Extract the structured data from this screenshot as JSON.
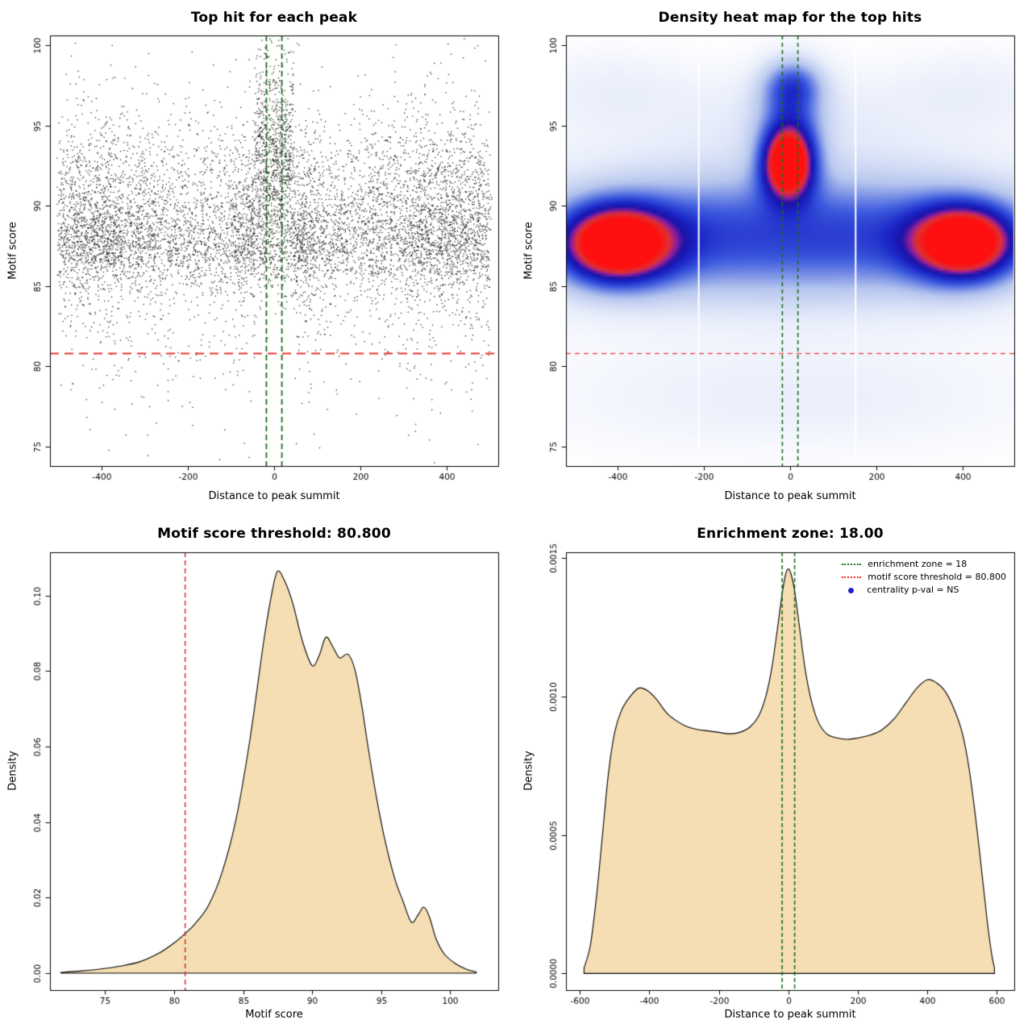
{
  "page": {
    "background_color": "#ffffff"
  },
  "chart_data": [
    {
      "type": "scatter",
      "title": "Top hit for each peak",
      "xlabel": "Distance to peak summit",
      "ylabel": "Motif score",
      "xlim": [
        -520,
        520
      ],
      "ylim": [
        73.8,
        100.6
      ],
      "xticks": [
        -400,
        -200,
        0,
        200,
        400
      ],
      "xticklabels": [
        "-400",
        "-200",
        "0",
        "200",
        "400"
      ],
      "yticks": [
        75,
        80,
        85,
        90,
        95,
        100
      ],
      "yticklabels": [
        "75",
        "80",
        "85",
        "90",
        "95",
        "100"
      ],
      "point_color": "#000000",
      "threshold_line": {
        "y": 80.8,
        "color": "#ee3030"
      },
      "zone_lines": {
        "x": [
          -18,
          18
        ],
        "color": "#1c6b1c"
      },
      "scatter_gen": {
        "seed": 1337,
        "n": 9000,
        "x_clip": [
          -505,
          505
        ],
        "y_clip": [
          73.9,
          100.45
        ],
        "center_half_width": 45,
        "x_mix": [
          {
            "w": 0.6,
            "dist": "uniform",
            "a": -500,
            "b": 500
          },
          {
            "w": 0.16,
            "dist": "normal",
            "mean": 5,
            "sd": 60
          },
          {
            "w": 0.12,
            "dist": "normal",
            "mean": -400,
            "sd": 85
          },
          {
            "w": 0.12,
            "dist": "normal",
            "mean": 400,
            "sd": 85
          }
        ],
        "y_mix": [
          {
            "w": 0.42,
            "dist": "normal",
            "mean": 88.2,
            "sd": 2.3
          },
          {
            "w": 0.22,
            "dist": "normal",
            "mean": 87.6,
            "sd": 1.2
          },
          {
            "w": 0.19,
            "dist": "normal",
            "mean": 91.8,
            "sd": 2.1
          },
          {
            "w": 0.13,
            "dist": "normal",
            "mean": 89.0,
            "sd": 5.5
          },
          {
            "w": 0.04,
            "dist": "normal",
            "mean": 83.0,
            "sd": 3.5
          }
        ],
        "y_mix_center": [
          {
            "w": 0.34,
            "dist": "normal",
            "mean": 92.6,
            "sd": 1.9
          },
          {
            "w": 0.27,
            "dist": "normal",
            "mean": 89.3,
            "sd": 2.6
          },
          {
            "w": 0.24,
            "dist": "normal",
            "mean": 95.8,
            "sd": 2.4
          },
          {
            "w": 0.15,
            "dist": "normal",
            "mean": 87.5,
            "sd": 1.5
          }
        ]
      }
    },
    {
      "type": "heatmap",
      "title": "Density heat map for the top hits",
      "xlabel": "Distance to peak summit",
      "ylabel": "Motif score",
      "xlim": [
        -520,
        520
      ],
      "ylim": [
        73.8,
        100.6
      ],
      "xticks": [
        -400,
        -200,
        0,
        200,
        400
      ],
      "xticklabels": [
        "-400",
        "-200",
        "0",
        "200",
        "400"
      ],
      "yticks": [
        75,
        80,
        85,
        90,
        95,
        100
      ],
      "yticklabels": [
        "75",
        "80",
        "85",
        "90",
        "95",
        "100"
      ],
      "colormap": [
        [
          0.0,
          "#ffffff"
        ],
        [
          0.12,
          "#e9eefb"
        ],
        [
          0.3,
          "#b6c6ee"
        ],
        [
          0.5,
          "#3c5ade"
        ],
        [
          0.62,
          "#1c28c8"
        ],
        [
          0.72,
          "#1a12a8"
        ],
        [
          0.8,
          "#931f9e"
        ],
        [
          0.88,
          "#e03232"
        ],
        [
          1.0,
          "#ff0f0f"
        ]
      ],
      "blobs": [
        {
          "x": -405,
          "y": 87.6,
          "sx": 90,
          "sy": 1.7,
          "w": 1.0
        },
        {
          "x": 405,
          "y": 87.7,
          "sx": 85,
          "sy": 1.65,
          "w": 0.97
        },
        {
          "x": -5,
          "y": 92.6,
          "sx": 42,
          "sy": 1.5,
          "w": 1.0
        },
        {
          "x": 0,
          "y": 88.2,
          "sx": 470,
          "sy": 3.1,
          "w": 0.5
        },
        {
          "x": -230,
          "y": 88.0,
          "sx": 150,
          "sy": 2.3,
          "w": 0.08
        },
        {
          "x": 190,
          "y": 88.0,
          "sx": 150,
          "sy": 2.3,
          "w": 0.08
        },
        {
          "x": 5,
          "y": 97.6,
          "sx": 52,
          "sy": 1.25,
          "w": 0.45
        },
        {
          "x": 0,
          "y": 94.8,
          "sx": 55,
          "sy": 1.6,
          "w": 0.3
        },
        {
          "x": 0,
          "y": 95.9,
          "sx": 380,
          "sy": 2.0,
          "w": 0.1
        },
        {
          "x": 0,
          "y": 78.0,
          "sx": 400,
          "sy": 2.3,
          "w": 0.11
        },
        {
          "x": -430,
          "y": 97.6,
          "sx": 120,
          "sy": 1.6,
          "w": 0.07
        },
        {
          "x": 430,
          "y": 97.6,
          "sx": 120,
          "sy": 1.6,
          "w": 0.07
        }
      ],
      "white_lines_x": [
        -212,
        152
      ],
      "threshold_line": {
        "y": 80.8,
        "color": "#f25050"
      },
      "zone_lines": {
        "x": [
          -18,
          18
        ],
        "color": "#1c6b1c"
      }
    },
    {
      "type": "density",
      "title": "Motif score threshold: 80.800",
      "xlabel": "Motif score",
      "ylabel": "Density",
      "xlim": [
        71,
        103.5
      ],
      "ylim": [
        -0.0045,
        0.1115
      ],
      "xticks": [
        75,
        80,
        85,
        90,
        95,
        100
      ],
      "xticklabels": [
        "75",
        "80",
        "85",
        "90",
        "95",
        "100"
      ],
      "yticks": [
        0,
        0.02,
        0.04,
        0.06,
        0.08,
        0.1
      ],
      "yticklabels": [
        "0.00",
        "0.02",
        "0.04",
        "0.06",
        "0.08",
        "0.10"
      ],
      "fill_color": "#f5deb3",
      "line_color": "#000000",
      "threshold_vline": {
        "x": 80.8,
        "color": "#cc3030"
      },
      "curve": [
        [
          71.8,
          0.0002
        ],
        [
          73,
          0.0005
        ],
        [
          74.5,
          0.001
        ],
        [
          76,
          0.0018
        ],
        [
          77.5,
          0.003
        ],
        [
          79,
          0.0055
        ],
        [
          80,
          0.008
        ],
        [
          80.8,
          0.0105
        ],
        [
          81.5,
          0.013
        ],
        [
          82.5,
          0.018
        ],
        [
          83.5,
          0.027
        ],
        [
          84.5,
          0.041
        ],
        [
          85.5,
          0.062
        ],
        [
          86.5,
          0.088
        ],
        [
          87.1,
          0.101
        ],
        [
          87.5,
          0.1065
        ],
        [
          88,
          0.104
        ],
        [
          88.6,
          0.098
        ],
        [
          89.3,
          0.088
        ],
        [
          90,
          0.0815
        ],
        [
          90.5,
          0.084
        ],
        [
          91,
          0.089
        ],
        [
          91.5,
          0.0865
        ],
        [
          92,
          0.0835
        ],
        [
          92.6,
          0.0845
        ],
        [
          93.1,
          0.0805
        ],
        [
          93.6,
          0.071
        ],
        [
          94.1,
          0.059
        ],
        [
          94.7,
          0.046
        ],
        [
          95.3,
          0.035
        ],
        [
          96,
          0.025
        ],
        [
          96.6,
          0.019
        ],
        [
          97.2,
          0.0135
        ],
        [
          97.7,
          0.0155
        ],
        [
          98.1,
          0.0175
        ],
        [
          98.5,
          0.015
        ],
        [
          99,
          0.009
        ],
        [
          99.6,
          0.005
        ],
        [
          100.4,
          0.0025
        ],
        [
          101.2,
          0.001
        ],
        [
          101.9,
          0.0003
        ]
      ]
    },
    {
      "type": "density",
      "title": "Enrichment zone: 18.00",
      "xlabel": "Distance to peak summit",
      "ylabel": "Density",
      "xlim": [
        -640,
        650
      ],
      "ylim": [
        -6e-05,
        0.00152
      ],
      "xticks": [
        -600,
        -400,
        -200,
        0,
        200,
        400,
        600
      ],
      "xticklabels": [
        "-600",
        "-400",
        "-200",
        "0",
        "200",
        "400",
        "600"
      ],
      "yticks": [
        0,
        0.0005,
        0.001,
        0.0015
      ],
      "yticklabels": [
        "0.0000",
        "0.0005",
        "0.0010",
        "0.0015"
      ],
      "fill_color": "#f5deb3",
      "line_color": "#000000",
      "zone_lines": {
        "x": [
          -18,
          18
        ],
        "color": "#1c6b1c"
      },
      "curve": [
        [
          -588,
          2e-05
        ],
        [
          -570,
          0.0001
        ],
        [
          -552,
          0.00028
        ],
        [
          -535,
          0.0005
        ],
        [
          -518,
          0.00072
        ],
        [
          -500,
          0.00087
        ],
        [
          -480,
          0.00095
        ],
        [
          -455,
          0.001
        ],
        [
          -430,
          0.00103
        ],
        [
          -405,
          0.00102
        ],
        [
          -380,
          0.00099
        ],
        [
          -350,
          0.00094
        ],
        [
          -320,
          0.00091
        ],
        [
          -290,
          0.00089
        ],
        [
          -260,
          0.00088
        ],
        [
          -230,
          0.000875
        ],
        [
          -200,
          0.00087
        ],
        [
          -170,
          0.000865
        ],
        [
          -140,
          0.00087
        ],
        [
          -110,
          0.00089
        ],
        [
          -85,
          0.00093
        ],
        [
          -65,
          0.001
        ],
        [
          -48,
          0.0011
        ],
        [
          -32,
          0.00124
        ],
        [
          -18,
          0.00137
        ],
        [
          -8,
          0.00144
        ],
        [
          0,
          0.00146
        ],
        [
          8,
          0.00144
        ],
        [
          18,
          0.00138
        ],
        [
          32,
          0.00125
        ],
        [
          48,
          0.0011
        ],
        [
          65,
          0.00099
        ],
        [
          85,
          0.00091
        ],
        [
          110,
          0.000865
        ],
        [
          140,
          0.00085
        ],
        [
          170,
          0.000845
        ],
        [
          200,
          0.00085
        ],
        [
          235,
          0.00086
        ],
        [
          270,
          0.00088
        ],
        [
          305,
          0.00092
        ],
        [
          340,
          0.00098
        ],
        [
          370,
          0.00103
        ],
        [
          400,
          0.00106
        ],
        [
          425,
          0.00105
        ],
        [
          450,
          0.00102
        ],
        [
          475,
          0.00096
        ],
        [
          500,
          0.00087
        ],
        [
          520,
          0.00074
        ],
        [
          540,
          0.00055
        ],
        [
          558,
          0.00035
        ],
        [
          573,
          0.00018
        ],
        [
          585,
          7e-05
        ],
        [
          593,
          2e-05
        ]
      ],
      "legend": [
        {
          "label": "enrichment zone = 18",
          "marker": "dotted-line",
          "color": "#1c6b1c"
        },
        {
          "label": "motif score threshold = 80.800",
          "marker": "dotted-line",
          "color": "#ee3030"
        },
        {
          "label": "centrality p-val = NS",
          "marker": "dot",
          "color": "#2020cc"
        }
      ]
    }
  ]
}
